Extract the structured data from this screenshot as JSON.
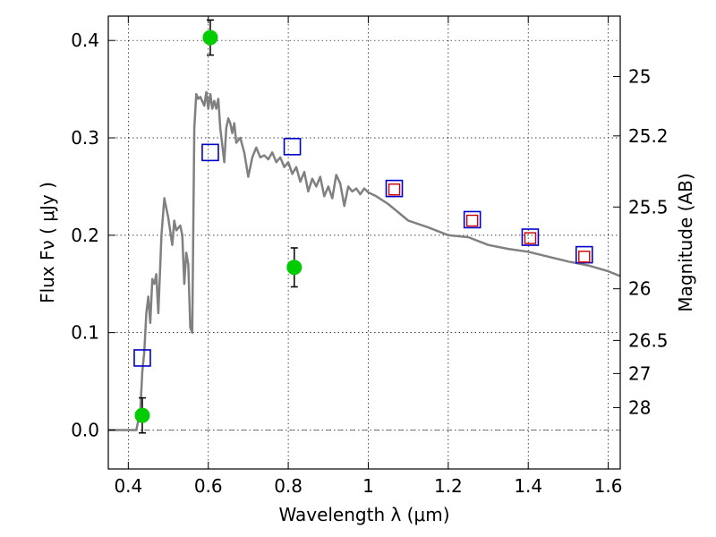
{
  "chart_data": {
    "type": "scatter",
    "xlabel": "Wavelength  λ (μm)",
    "ylabel": "Flux  Fν  ( μJy )",
    "ylabel_right": "Magnitude (AB)",
    "xlim": [
      0.35,
      1.63
    ],
    "ylim": [
      -0.04,
      0.425
    ],
    "grid": true,
    "x_ticks": [
      0.4,
      0.6,
      0.8,
      1.0,
      1.2,
      1.4,
      1.6
    ],
    "x_tick_labels": [
      "0.4",
      "0.6",
      "0.8",
      "1",
      "1.2",
      "1.4",
      "1.6"
    ],
    "y_ticks": [
      0.0,
      0.1,
      0.2,
      0.3,
      0.4
    ],
    "y_tick_labels": [
      "0.0",
      "0.1",
      "0.2",
      "0.3",
      "0.4"
    ],
    "right_ticks": [
      {
        "flux": 0.363,
        "label": "25"
      },
      {
        "flux": 0.302,
        "label": "25.2"
      },
      {
        "flux": 0.229,
        "label": "25.5"
      },
      {
        "flux": 0.145,
        "label": "26"
      },
      {
        "flux": 0.092,
        "label": "26.5"
      },
      {
        "flux": 0.058,
        "label": "27"
      },
      {
        "flux": 0.023,
        "label": "28"
      }
    ],
    "colors": {
      "model": "#808080",
      "detections": "#00cc00",
      "blue_squares": "#0000cc",
      "red_squares": "#cc0000"
    },
    "series": [
      {
        "marker": "line",
        "x": [
          0.35,
          0.41,
          0.42,
          0.43,
          0.435,
          0.44,
          0.445,
          0.45,
          0.455,
          0.46,
          0.465,
          0.47,
          0.475,
          0.48,
          0.483,
          0.49,
          0.5,
          0.51,
          0.515,
          0.52,
          0.53,
          0.535,
          0.54,
          0.545,
          0.55,
          0.555,
          0.56,
          0.565,
          0.57,
          0.575,
          0.58,
          0.59,
          0.595,
          0.6,
          0.605,
          0.61,
          0.615,
          0.62,
          0.625,
          0.63,
          0.64,
          0.645,
          0.65,
          0.655,
          0.66,
          0.665,
          0.67,
          0.68,
          0.69,
          0.7,
          0.71,
          0.72,
          0.73,
          0.74,
          0.75,
          0.76,
          0.77,
          0.78,
          0.79,
          0.8,
          0.81,
          0.82,
          0.83,
          0.84,
          0.85,
          0.86,
          0.87,
          0.88,
          0.89,
          0.9,
          0.91,
          0.92,
          0.93,
          0.94,
          0.95,
          0.96,
          0.97,
          0.98,
          0.99,
          1.0,
          1.02,
          1.05,
          1.1,
          1.15,
          1.2,
          1.25,
          1.3,
          1.35,
          1.4,
          1.45,
          1.5,
          1.55,
          1.6,
          1.63
        ],
        "y": [
          0.0,
          0.0,
          0.0,
          0.02,
          0.06,
          0.08,
          0.12,
          0.137,
          0.11,
          0.155,
          0.15,
          0.16,
          0.12,
          0.17,
          0.2,
          0.238,
          0.218,
          0.19,
          0.215,
          0.205,
          0.21,
          0.2,
          0.15,
          0.182,
          0.17,
          0.105,
          0.1,
          0.31,
          0.345,
          0.34,
          0.342,
          0.333,
          0.347,
          0.33,
          0.345,
          0.33,
          0.338,
          0.33,
          0.34,
          0.31,
          0.275,
          0.31,
          0.32,
          0.315,
          0.305,
          0.315,
          0.295,
          0.3,
          0.285,
          0.26,
          0.28,
          0.29,
          0.28,
          0.282,
          0.278,
          0.285,
          0.275,
          0.28,
          0.27,
          0.275,
          0.263,
          0.27,
          0.255,
          0.265,
          0.245,
          0.258,
          0.25,
          0.26,
          0.24,
          0.25,
          0.238,
          0.262,
          0.253,
          0.23,
          0.25,
          0.245,
          0.248,
          0.242,
          0.248,
          0.244,
          0.24,
          0.232,
          0.215,
          0.208,
          0.2,
          0.198,
          0.19,
          0.186,
          0.183,
          0.178,
          0.173,
          0.169,
          0.163,
          0.158
        ]
      },
      {
        "marker": "circle",
        "x": [
          0.435,
          0.605,
          0.815
        ],
        "y": [
          0.015,
          0.403,
          0.167
        ],
        "yerr": [
          0.018,
          0.018,
          0.02
        ]
      },
      {
        "marker": "square",
        "x": [
          0.435,
          0.605,
          0.81,
          1.065,
          1.26,
          1.405,
          1.54
        ],
        "y": [
          0.074,
          0.285,
          0.291,
          0.248,
          0.216,
          0.198,
          0.18
        ]
      },
      {
        "marker": "square",
        "x": [
          1.065,
          1.26,
          1.405,
          1.54
        ],
        "y": [
          0.247,
          0.215,
          0.197,
          0.178
        ]
      }
    ]
  }
}
